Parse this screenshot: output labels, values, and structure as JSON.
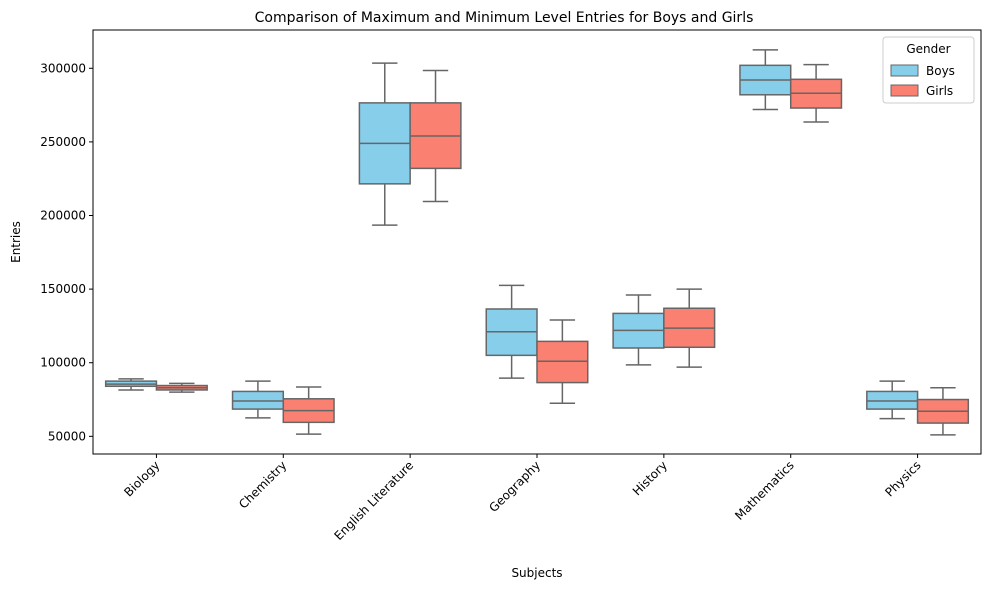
{
  "chart_data": {
    "type": "box",
    "title": "Comparison of Maximum and Minimum Level Entries for Boys and Girls",
    "xlabel": "Subjects",
    "ylabel": "Entries",
    "ylim": [
      38000,
      326000
    ],
    "yticks": [
      50000,
      100000,
      150000,
      200000,
      250000,
      300000
    ],
    "ytick_labels": [
      "50000",
      "100000",
      "150000",
      "200000",
      "250000",
      "300000"
    ],
    "categories": [
      "Biology",
      "Chemistry",
      "English Literature",
      "Geography",
      "History",
      "Mathematics",
      "Physics"
    ],
    "grid": false,
    "legend": {
      "title": "Gender",
      "placement": "top-right"
    },
    "series": [
      {
        "name": "Boys",
        "color": "#87ceeb",
        "boxes": [
          {
            "min": 81500,
            "q1": 84000,
            "median": 85500,
            "q3": 87500,
            "max": 89000
          },
          {
            "min": 62500,
            "q1": 68500,
            "median": 74000,
            "q3": 80500,
            "max": 87500
          },
          {
            "min": 193500,
            "q1": 221500,
            "median": 249000,
            "q3": 276500,
            "max": 303500
          },
          {
            "min": 89500,
            "q1": 105000,
            "median": 121000,
            "q3": 136500,
            "max": 152500
          },
          {
            "min": 98500,
            "q1": 110000,
            "median": 122000,
            "q3": 133500,
            "max": 146000
          },
          {
            "min": 272000,
            "q1": 282000,
            "median": 292000,
            "q3": 302000,
            "max": 312500
          },
          {
            "min": 62000,
            "q1": 68500,
            "median": 74000,
            "q3": 80500,
            "max": 87500
          }
        ]
      },
      {
        "name": "Girls",
        "color": "#fa8072",
        "boxes": [
          {
            "min": 80000,
            "q1": 81500,
            "median": 83000,
            "q3": 84500,
            "max": 86000
          },
          {
            "min": 51500,
            "q1": 59500,
            "median": 67500,
            "q3": 75500,
            "max": 83500
          },
          {
            "min": 209500,
            "q1": 232000,
            "median": 254000,
            "q3": 276500,
            "max": 298500
          },
          {
            "min": 72500,
            "q1": 86500,
            "median": 101000,
            "q3": 114500,
            "max": 129000
          },
          {
            "min": 97000,
            "q1": 110500,
            "median": 123500,
            "q3": 137000,
            "max": 150000
          },
          {
            "min": 263500,
            "q1": 273000,
            "median": 283000,
            "q3": 292500,
            "max": 302500
          },
          {
            "min": 51000,
            "q1": 59000,
            "median": 67000,
            "q3": 75000,
            "max": 83000
          }
        ]
      }
    ]
  }
}
